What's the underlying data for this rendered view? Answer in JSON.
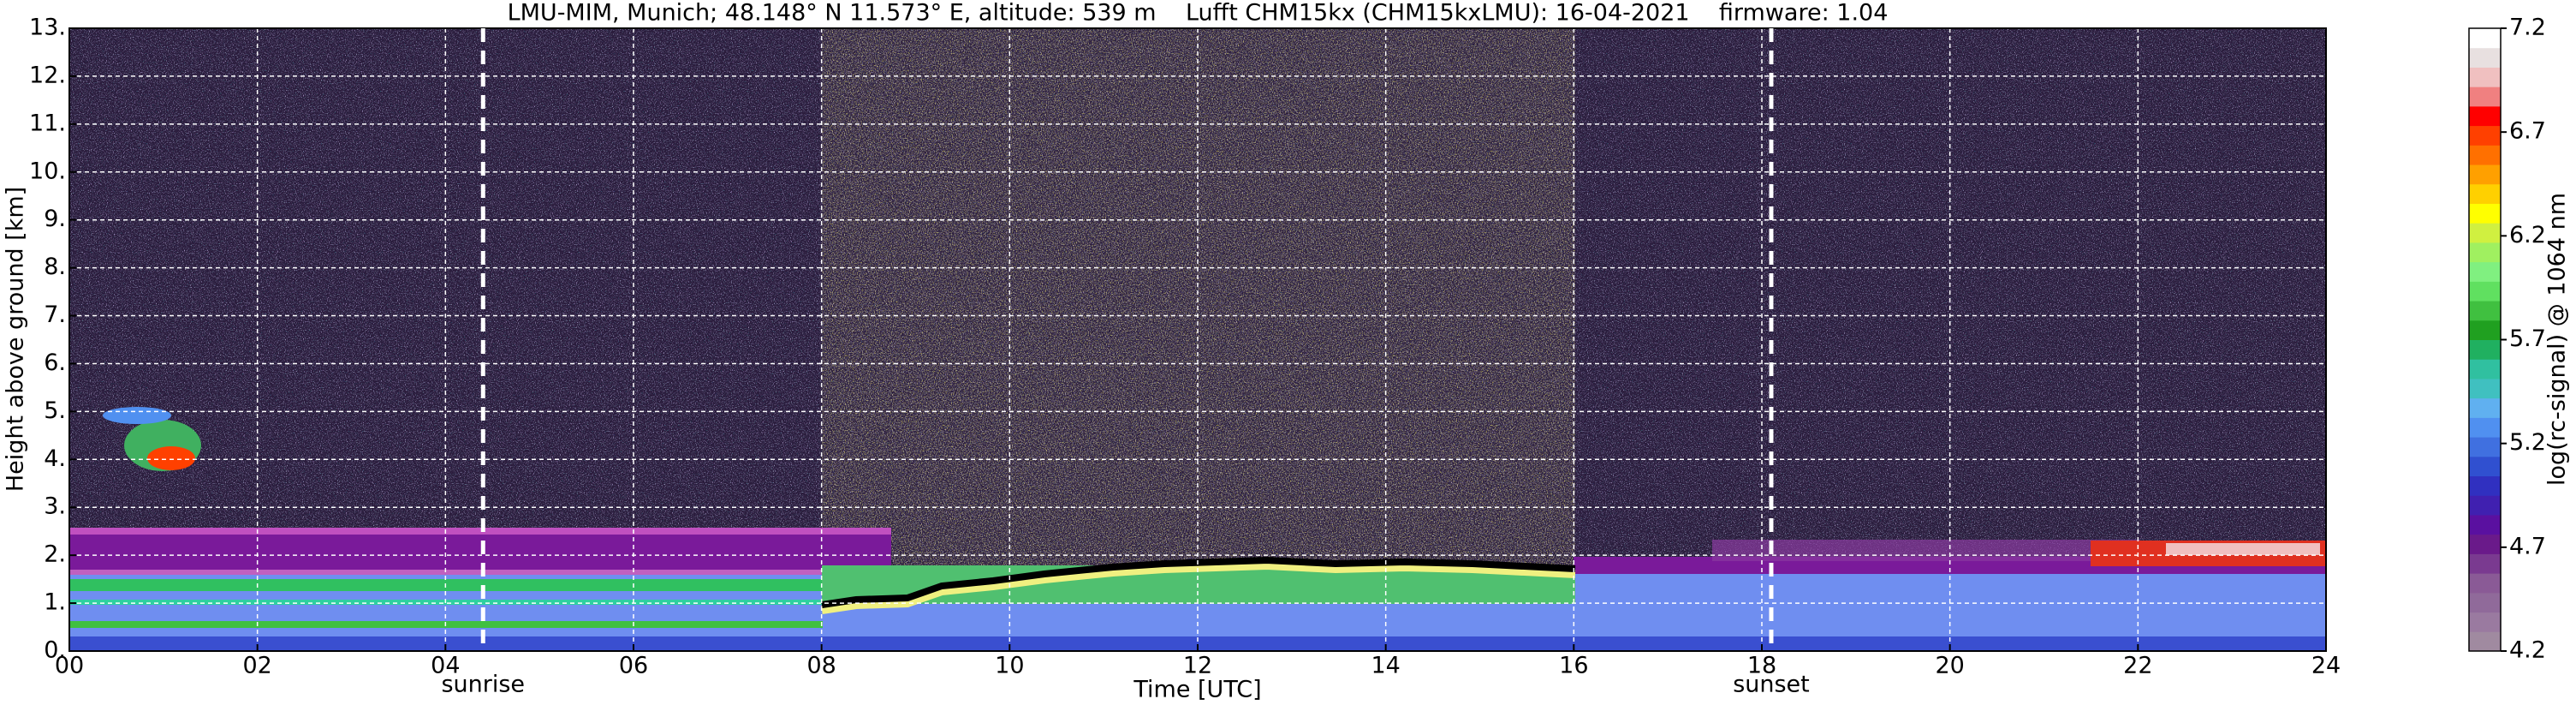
{
  "chart_data": {
    "type": "heatmap",
    "title": "LMU-MIM, Munich; 48.148° N 11.573° E, altitude: 539 m    Lufft CHM15kx (CHM15kxLMU): 16-04-2021    firmware: 1.04",
    "xlabel": "Time [UTC]",
    "ylabel": "Height above ground [km]",
    "xlim": [
      0,
      24
    ],
    "xticks": [
      {
        "value": 0,
        "label": "00"
      },
      {
        "value": 2,
        "label": "02"
      },
      {
        "value": 4,
        "label": "04"
      },
      {
        "value": 6,
        "label": "06"
      },
      {
        "value": 8,
        "label": "08"
      },
      {
        "value": 10,
        "label": "10"
      },
      {
        "value": 12,
        "label": "12"
      },
      {
        "value": 14,
        "label": "14"
      },
      {
        "value": 16,
        "label": "16"
      },
      {
        "value": 18,
        "label": "18"
      },
      {
        "value": 20,
        "label": "20"
      },
      {
        "value": 22,
        "label": "22"
      },
      {
        "value": 24,
        "label": "24"
      }
    ],
    "ylim": [
      0,
      13
    ],
    "yticks": [
      {
        "value": 0,
        "label": "0."
      },
      {
        "value": 1,
        "label": "1."
      },
      {
        "value": 2,
        "label": "2."
      },
      {
        "value": 3,
        "label": "3."
      },
      {
        "value": 4,
        "label": "4."
      },
      {
        "value": 5,
        "label": "5."
      },
      {
        "value": 6,
        "label": "6."
      },
      {
        "value": 7,
        "label": "7."
      },
      {
        "value": 8,
        "label": "8."
      },
      {
        "value": 9,
        "label": "9."
      },
      {
        "value": 10,
        "label": "10."
      },
      {
        "value": 11,
        "label": "11."
      },
      {
        "value": 12,
        "label": "12."
      },
      {
        "value": 13,
        "label": "13."
      }
    ],
    "grid": true,
    "annotations": [
      {
        "label": "sunrise",
        "x": 4.4
      },
      {
        "label": "sunset",
        "x": 18.1
      }
    ],
    "colorbar": {
      "label": "log(rc-signal) @ 1064 nm",
      "clim": [
        4.2,
        7.2
      ],
      "ticks": [
        4.2,
        4.7,
        5.2,
        5.7,
        6.2,
        6.7,
        7.2
      ],
      "colors": [
        "#a08aa0",
        "#9a7aa0",
        "#906a9a",
        "#8a5a96",
        "#7a3a90",
        "#6a1a8a",
        "#5a10a0",
        "#4020b0",
        "#3030c0",
        "#3050d0",
        "#4070e0",
        "#5090f0",
        "#60b0f0",
        "#40c0c0",
        "#30c0a0",
        "#20b060",
        "#20a020",
        "#40c040",
        "#60e060",
        "#80f080",
        "#a0f060",
        "#d0f040",
        "#ffff00",
        "#ffd000",
        "#ffa000",
        "#ff7000",
        "#ff4000",
        "#ff0000",
        "#f08080",
        "#f0c0c0",
        "#e8e0e0",
        "#ffffff"
      ]
    }
  }
}
